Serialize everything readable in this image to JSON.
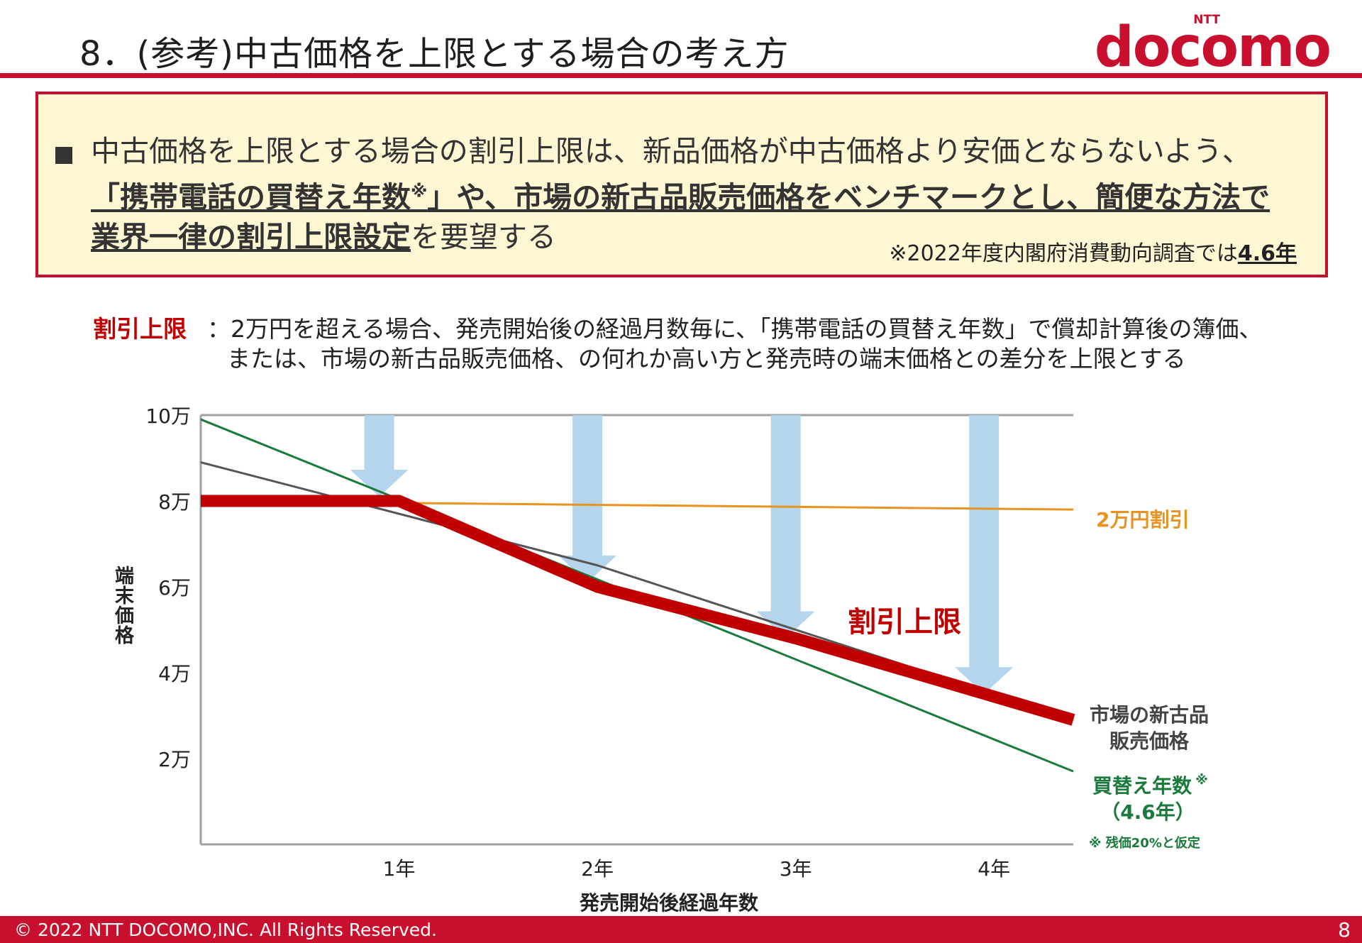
{
  "header": {
    "title": "8．(参考)中古価格を上限とする場合の考え方",
    "logo_small": "NTT",
    "logo_name": "docomo"
  },
  "callout": {
    "line1": "中古価格を上限とする場合の割引上限は、新品価格が中古価格より安価とならないよう、",
    "line2_u": "「携帯電話の買替え年数",
    "line2_sup": "※",
    "line2_rest": "」や、市場の新古品販売価格をベンチマークとし、簡便な方法で",
    "line3_u": "業界一律の割引上限設定",
    "line3_rest": "を要望する",
    "note_prefix": "※2022年度内閣府消費動向調査では",
    "note_value": "4.6年"
  },
  "definition": {
    "label": "割引上限",
    "line1": "：2万円を超える場合、発売開始後の経過月数毎に、「携帯電話の買替え年数」で償却計算後の簿価、",
    "line2": "または、市場の新古品販売価格、の何れか高い方と発売時の端末価格との差分を上限とする"
  },
  "chart_data": {
    "type": "line",
    "title": "",
    "xlabel": "発売開始後経過年数",
    "ylabel": "端末価格",
    "xlim": [
      0,
      4.4
    ],
    "ylim": [
      0,
      100000
    ],
    "x_ticks": [
      1,
      2,
      3,
      4
    ],
    "x_tick_labels": [
      "1年",
      "2年",
      "3年",
      "4年"
    ],
    "y_ticks": [
      20000,
      40000,
      60000,
      80000,
      100000
    ],
    "y_tick_labels": [
      "2万",
      "4万",
      "6万",
      "8万",
      "10万"
    ],
    "series": [
      {
        "name": "2万円割引",
        "color": "#e8931f",
        "x": [
          0,
          4.4
        ],
        "y": [
          80000,
          78000
        ]
      },
      {
        "name": "市場の新古品販売価格",
        "color": "#555555",
        "x": [
          0,
          2,
          4.4
        ],
        "y": [
          89000,
          65000,
          29000
        ]
      },
      {
        "name": "買替え年数※(4.6年)",
        "color": "#1a7a3c",
        "x": [
          0,
          4.4
        ],
        "y": [
          99000,
          17000
        ]
      },
      {
        "name": "割引上限",
        "color": "#c00000",
        "x": [
          0,
          1,
          2,
          3,
          4.4
        ],
        "y": [
          80000,
          80000,
          60000,
          48000,
          29000
        ]
      }
    ],
    "arrows_x": [
      0.9,
      1.95,
      2.95,
      3.95
    ],
    "arrows_bottom_y": [
      81000,
      61000,
      48000,
      35000
    ],
    "labels": {
      "discount": "2万円割引",
      "market_line1": "市場の新古品",
      "market_line2": "販売価格",
      "replace_line1": "買替え年数",
      "replace_sup": "※",
      "replace_line2": "（4.6年）",
      "replace_note": "※ 残価20%と仮定",
      "limit": "割引上限"
    }
  },
  "footer": {
    "copyright": "© 2022 NTT DOCOMO,INC. All Rights Reserved.",
    "page": "8"
  }
}
